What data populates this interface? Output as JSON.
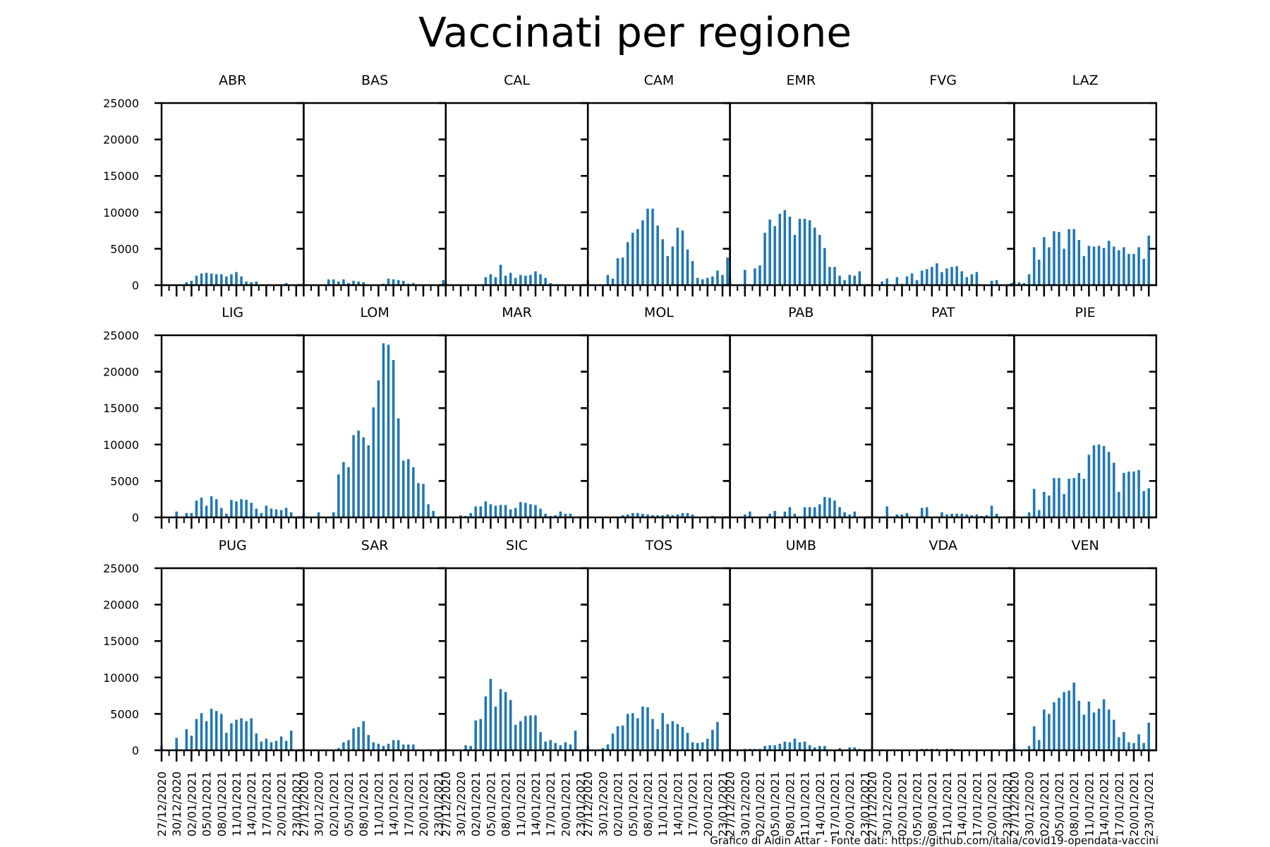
{
  "chart_data": {
    "type": "bar",
    "title": "Vaccinati per regione",
    "footer": "Grafico di Aidin Attar - Fonte dati: https://github.com/italia/covid19-opendata-vaccini",
    "ylim": [
      0,
      25000
    ],
    "yticks": [
      0,
      5000,
      10000,
      15000,
      20000,
      25000
    ],
    "xtick_labels": [
      "27/12/2020",
      "30/12/2020",
      "02/01/2021",
      "05/01/2021",
      "08/01/2021",
      "11/01/2021",
      "14/01/2021",
      "17/01/2021",
      "20/01/2021",
      "23/01/2021"
    ],
    "grid": false,
    "bar_color": "#1f77b4",
    "dates": [
      "27/12/2020",
      "28/12/2020",
      "29/12/2020",
      "30/12/2020",
      "31/12/2020",
      "01/01/2021",
      "02/01/2021",
      "03/01/2021",
      "04/01/2021",
      "05/01/2021",
      "06/01/2021",
      "07/01/2021",
      "08/01/2021",
      "09/01/2021",
      "10/01/2021",
      "11/01/2021",
      "12/01/2021",
      "13/01/2021",
      "14/01/2021",
      "15/01/2021",
      "16/01/2021",
      "17/01/2021",
      "18/01/2021",
      "19/01/2021",
      "20/01/2021",
      "21/01/2021",
      "22/01/2021",
      "23/01/2021",
      "24/01/2021"
    ],
    "panels": [
      {
        "name": "ABR",
        "values": [
          0,
          0,
          0,
          0,
          0,
          400,
          600,
          1300,
          1600,
          1700,
          1600,
          1500,
          1500,
          1200,
          1500,
          1800,
          1200,
          500,
          400,
          500,
          100,
          0,
          0,
          0,
          0,
          300,
          0,
          0,
          0
        ]
      },
      {
        "name": "BAS",
        "values": [
          0,
          0,
          0,
          0,
          0,
          800,
          800,
          500,
          800,
          300,
          600,
          500,
          400,
          0,
          0,
          0,
          200,
          900,
          800,
          700,
          600,
          200,
          300,
          100,
          0,
          0,
          0,
          0,
          700
        ]
      },
      {
        "name": "CAL",
        "values": [
          300,
          0,
          0,
          0,
          0,
          0,
          100,
          0,
          1100,
          1500,
          1100,
          2800,
          1300,
          1700,
          1000,
          1400,
          1300,
          1400,
          1900,
          1500,
          1000,
          300,
          0,
          0,
          0,
          0,
          0,
          0,
          0
        ]
      },
      {
        "name": "CAM",
        "values": [
          700,
          0,
          0,
          0,
          1400,
          900,
          3700,
          3800,
          5900,
          7200,
          7700,
          8900,
          10500,
          10500,
          8200,
          6300,
          4000,
          5300,
          7900,
          7500,
          4900,
          3300,
          1000,
          800,
          1000,
          1200,
          2000,
          1400,
          3800
        ]
      },
      {
        "name": "EMR",
        "values": [
          1000,
          0,
          0,
          2100,
          0,
          2300,
          2700,
          7200,
          9000,
          8100,
          9800,
          10300,
          9400,
          6900,
          9100,
          9100,
          8900,
          7900,
          6900,
          5100,
          2500,
          2500,
          1300,
          700,
          1400,
          1300,
          1900,
          0,
          0
        ]
      },
      {
        "name": "FVG",
        "values": [
          0,
          0,
          500,
          900,
          0,
          1100,
          200,
          1200,
          1600,
          700,
          2000,
          2200,
          2500,
          3000,
          1800,
          2300,
          2500,
          2600,
          1900,
          1100,
          1500,
          1800,
          0,
          0,
          600,
          700,
          0,
          0,
          300
        ]
      },
      {
        "name": "LAZ",
        "values": [
          600,
          400,
          300,
          1500,
          5200,
          3500,
          6600,
          5200,
          7400,
          7300,
          5000,
          7700,
          7700,
          6200,
          4000,
          5400,
          5300,
          5400,
          5100,
          6100,
          5300,
          4800,
          5200,
          4300,
          4300,
          5200,
          3600,
          6800,
          0
        ]
      },
      {
        "name": "LIG",
        "values": [
          0,
          0,
          0,
          800,
          0,
          600,
          600,
          2300,
          2700,
          1600,
          2900,
          2500,
          1300,
          500,
          2400,
          2200,
          2500,
          2400,
          2000,
          1200,
          600,
          1600,
          1200,
          1100,
          1000,
          1300,
          700,
          0,
          0
        ]
      },
      {
        "name": "LOM",
        "values": [
          600,
          0,
          0,
          700,
          0,
          0,
          700,
          5900,
          7600,
          6900,
          11300,
          11900,
          11000,
          9900,
          15100,
          18800,
          23900,
          23700,
          21600,
          13600,
          7800,
          8000,
          6900,
          4700,
          4600,
          1800,
          900,
          0,
          0
        ]
      },
      {
        "name": "MAR",
        "values": [
          0,
          0,
          0,
          300,
          200,
          600,
          1500,
          1500,
          2200,
          1800,
          1600,
          1700,
          1700,
          1100,
          1300,
          2100,
          2000,
          1800,
          1700,
          1200,
          500,
          200,
          300,
          800,
          500,
          500,
          0,
          0,
          0
        ]
      },
      {
        "name": "MOL",
        "values": [
          0,
          0,
          0,
          0,
          0,
          0,
          0,
          300,
          400,
          600,
          600,
          500,
          400,
          300,
          300,
          300,
          400,
          300,
          400,
          600,
          600,
          400,
          0,
          100,
          0,
          200,
          0,
          100,
          0
        ]
      },
      {
        "name": "PAB",
        "values": [
          0,
          0,
          0,
          400,
          800,
          0,
          0,
          0,
          500,
          900,
          0,
          800,
          1400,
          500,
          0,
          1400,
          1400,
          1400,
          1800,
          2800,
          2700,
          2300,
          1400,
          700,
          400,
          800,
          0,
          0,
          0
        ]
      },
      {
        "name": "PAT",
        "values": [
          0,
          0,
          0,
          1500,
          0,
          400,
          400,
          600,
          0,
          0,
          1300,
          1400,
          0,
          0,
          700,
          400,
          500,
          500,
          500,
          400,
          300,
          400,
          200,
          300,
          1600,
          500,
          0,
          0,
          0
        ]
      },
      {
        "name": "PIE",
        "values": [
          900,
          0,
          0,
          700,
          3900,
          1000,
          3500,
          3000,
          5400,
          5400,
          3200,
          5300,
          5400,
          6100,
          5300,
          8600,
          9900,
          10000,
          9800,
          9000,
          7500,
          3500,
          6100,
          6300,
          6300,
          6500,
          3600,
          4000,
          0
        ]
      },
      {
        "name": "PUG",
        "values": [
          600,
          0,
          0,
          1700,
          0,
          2900,
          2000,
          4300,
          5100,
          4000,
          5700,
          5400,
          5000,
          2400,
          3700,
          4200,
          4400,
          4000,
          4400,
          2300,
          1200,
          1600,
          1100,
          1300,
          1900,
          1300,
          2700,
          0,
          0
        ]
      },
      {
        "name": "SAR",
        "values": [
          0,
          0,
          0,
          0,
          0,
          0,
          0,
          300,
          1100,
          1400,
          3000,
          3200,
          4000,
          2100,
          1100,
          900,
          600,
          900,
          1400,
          1400,
          800,
          800,
          800,
          0,
          0,
          0,
          0,
          0,
          0
        ]
      },
      {
        "name": "SIC",
        "values": [
          0,
          0,
          0,
          0,
          700,
          600,
          4100,
          4300,
          7400,
          9800,
          6000,
          8400,
          8000,
          6900,
          3500,
          4000,
          4700,
          4800,
          4800,
          2500,
          1200,
          1400,
          1000,
          700,
          1100,
          800,
          2700,
          0,
          0
        ]
      },
      {
        "name": "TOS",
        "values": [
          600,
          0,
          0,
          300,
          800,
          2300,
          3300,
          3400,
          5000,
          5100,
          4400,
          6000,
          5900,
          4300,
          2900,
          5100,
          3600,
          4000,
          3600,
          3200,
          2400,
          1100,
          1000,
          1100,
          1600,
          2800,
          3900,
          0,
          0
        ]
      },
      {
        "name": "UMB",
        "values": [
          0,
          0,
          0,
          200,
          200,
          200,
          200,
          600,
          700,
          700,
          900,
          1200,
          1100,
          1600,
          1100,
          1200,
          700,
          400,
          600,
          600,
          0,
          0,
          300,
          0,
          400,
          400,
          200,
          0,
          0
        ]
      },
      {
        "name": "VDA",
        "values": [
          0,
          0,
          0,
          0,
          0,
          0,
          0,
          0,
          0,
          100,
          200,
          200,
          200,
          200,
          100,
          200,
          200,
          0,
          0,
          0,
          100,
          0,
          0,
          0,
          100,
          0,
          0,
          0,
          0
        ]
      },
      {
        "name": "VEN",
        "values": [
          900,
          0,
          0,
          600,
          3300,
          1400,
          5600,
          5000,
          6600,
          7200,
          8000,
          8200,
          9300,
          6800,
          4900,
          6700,
          5200,
          5700,
          7000,
          5600,
          4200,
          1800,
          2500,
          1100,
          1000,
          2200,
          1000,
          3800,
          0
        ]
      }
    ]
  }
}
